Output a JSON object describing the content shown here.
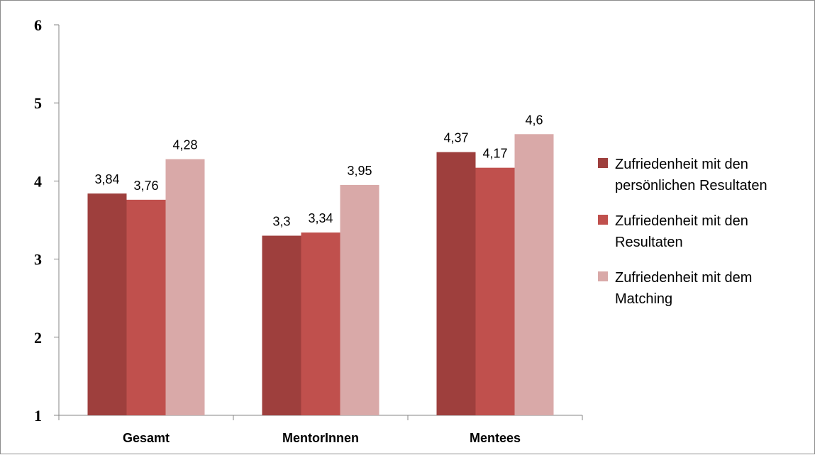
{
  "chart_data": {
    "type": "bar",
    "categories": [
      "Gesamt",
      "MentorInnen",
      "Mentees"
    ],
    "series": [
      {
        "name": "Zufriedenheit mit den persönlichen Resultaten",
        "legend_lines": [
          "Zufriedenheit mit den",
          "persönlichen Resultaten"
        ],
        "color": "#9e3f3d",
        "values": [
          3.84,
          3.3,
          4.37
        ],
        "labels": [
          "3,84",
          "3,3",
          "4,37"
        ]
      },
      {
        "name": "Zufriedenheit mit den Resultaten",
        "legend_lines": [
          "Zufriedenheit mit den",
          "Resultaten"
        ],
        "color": "#c0504d",
        "values": [
          3.76,
          3.34,
          4.17
        ],
        "labels": [
          "3,76",
          "3,34",
          "4,17"
        ]
      },
      {
        "name": "Zufriedenheit mit dem Matching",
        "legend_lines": [
          "Zufriedenheit mit dem",
          "Matching"
        ],
        "color": "#d9a9a8",
        "values": [
          4.28,
          3.95,
          4.6
        ],
        "labels": [
          "4,28",
          "3,95",
          "4,6"
        ]
      }
    ],
    "ylim": [
      1,
      6
    ],
    "yticks": [
      1,
      2,
      3,
      4,
      5,
      6
    ],
    "ytick_labels": [
      "1",
      "2",
      "3",
      "4",
      "5",
      "6"
    ],
    "grid": false,
    "legend_position": "right",
    "title": "",
    "xlabel": "",
    "ylabel": ""
  }
}
